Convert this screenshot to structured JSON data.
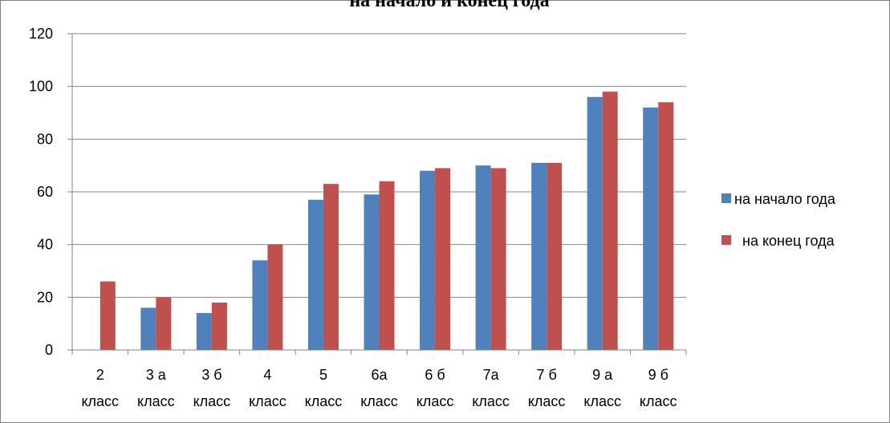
{
  "chart_data": {
    "type": "bar",
    "title": "на начало и конец года",
    "xlabel": "",
    "ylabel": "",
    "ylim": [
      0,
      120
    ],
    "y_ticks": [
      0,
      20,
      40,
      60,
      80,
      100,
      120
    ],
    "grid": true,
    "legend_position": "right",
    "categories": [
      [
        "2",
        "класс"
      ],
      [
        "3 а",
        "класс"
      ],
      [
        "3 б",
        "класс"
      ],
      [
        "4",
        "класс"
      ],
      [
        "5",
        "класс"
      ],
      [
        "6а",
        "класс"
      ],
      [
        "6 б",
        "класс"
      ],
      [
        "7а",
        "класс"
      ],
      [
        "7 б",
        "класс"
      ],
      [
        "9 а",
        "класс"
      ],
      [
        "9 б",
        "класс"
      ]
    ],
    "series": [
      {
        "name": "на начало года",
        "color": "#4F81BD",
        "values": [
          0,
          16,
          14,
          34,
          57,
          59,
          68,
          70,
          71,
          96,
          92
        ]
      },
      {
        "name": "на конец года",
        "color": "#C0504D",
        "values": [
          26,
          20,
          18,
          40,
          63,
          64,
          69,
          69,
          71,
          98,
          94
        ]
      }
    ]
  }
}
